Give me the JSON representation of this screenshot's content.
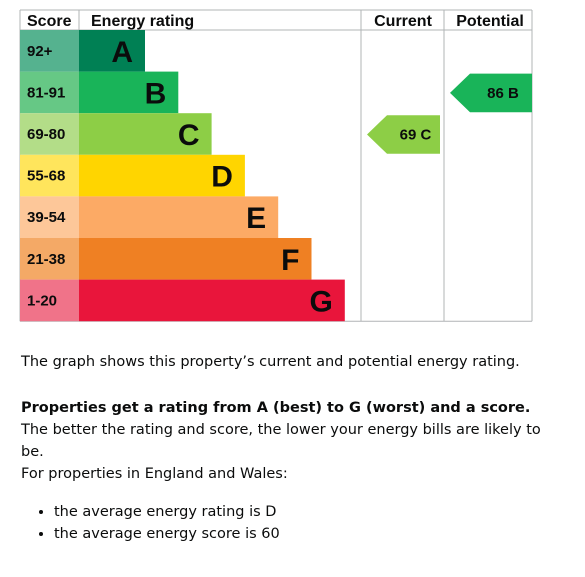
{
  "chart_data": {
    "type": "bar",
    "headers": {
      "score": "Score",
      "rating": "Energy rating",
      "current": "Current",
      "potential": "Potential"
    },
    "bands": [
      {
        "score": "92+",
        "letter": "A",
        "min": 92,
        "max": 100,
        "color": "#008054",
        "score_bg": "#55b28f",
        "text_color": "#0b0c0c",
        "width_rank": 1
      },
      {
        "score": "81-91",
        "letter": "B",
        "min": 81,
        "max": 91,
        "color": "#19b459",
        "score_bg": "#66c885",
        "text_color": "#0b0c0c",
        "width_rank": 2
      },
      {
        "score": "69-80",
        "letter": "C",
        "min": 69,
        "max": 80,
        "color": "#8dce46",
        "score_bg": "#b3dd88",
        "text_color": "#0b0c0c",
        "width_rank": 3
      },
      {
        "score": "55-68",
        "letter": "D",
        "min": 55,
        "max": 68,
        "color": "#ffd500",
        "score_bg": "#ffe55c",
        "text_color": "#0b0c0c",
        "width_rank": 4
      },
      {
        "score": "39-54",
        "letter": "E",
        "min": 39,
        "max": 54,
        "color": "#fcaa65",
        "score_bg": "#fdc799",
        "text_color": "#0b0c0c",
        "width_rank": 5
      },
      {
        "score": "21-38",
        "letter": "F",
        "min": 21,
        "max": 38,
        "color": "#ef8023",
        "score_bg": "#f4a966",
        "text_color": "#0b0c0c",
        "width_rank": 6
      },
      {
        "score": "1-20",
        "letter": "G",
        "min": 1,
        "max": 20,
        "color": "#e9153b",
        "score_bg": "#f07389",
        "text_color": "#0b0c0c",
        "width_rank": 7
      }
    ],
    "current": {
      "score": 69,
      "letter": "C",
      "label": "69 C",
      "color": "#8dce46"
    },
    "potential": {
      "score": 86,
      "letter": "B",
      "label": "86 B",
      "color": "#19b459"
    }
  },
  "text": {
    "graph_description": "The graph shows this property’s current and potential energy rating.",
    "rating_bold": "Properties get a rating from A (best) to G (worst) and a score.",
    "rating_rest": " The better the rating and score, the lower your energy bills are likely to be.",
    "region_intro": "For properties in England and Wales:",
    "averages": [
      "the average energy rating is D",
      "the average energy score is 60"
    ]
  }
}
